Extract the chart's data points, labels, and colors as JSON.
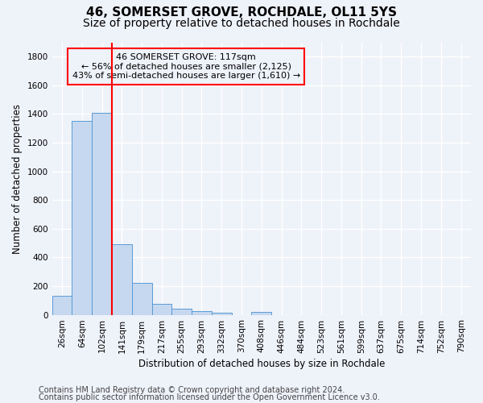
{
  "title1": "46, SOMERSET GROVE, ROCHDALE, OL11 5YS",
  "title2": "Size of property relative to detached houses in Rochdale",
  "xlabel": "Distribution of detached houses by size in Rochdale",
  "ylabel": "Number of detached properties",
  "bar_labels": [
    "26sqm",
    "64sqm",
    "102sqm",
    "141sqm",
    "179sqm",
    "217sqm",
    "255sqm",
    "293sqm",
    "332sqm",
    "370sqm",
    "408sqm",
    "446sqm",
    "484sqm",
    "523sqm",
    "561sqm",
    "599sqm",
    "637sqm",
    "675sqm",
    "714sqm",
    "752sqm",
    "790sqm"
  ],
  "bar_values": [
    135,
    1350,
    1410,
    490,
    225,
    75,
    45,
    28,
    15,
    0,
    20,
    0,
    0,
    0,
    0,
    0,
    0,
    0,
    0,
    0,
    0
  ],
  "bar_color": "#c5d8ef",
  "bar_edge_color": "#5b9bd5",
  "property_line_x": 2.5,
  "property_line_color": "red",
  "annotation_text": "46 SOMERSET GROVE: 117sqm\n← 56% of detached houses are smaller (2,125)\n43% of semi-detached houses are larger (1,610) →",
  "annotation_box_color": "red",
  "ylim": [
    0,
    1900
  ],
  "yticks": [
    0,
    200,
    400,
    600,
    800,
    1000,
    1200,
    1400,
    1600,
    1800
  ],
  "footer1": "Contains HM Land Registry data © Crown copyright and database right 2024.",
  "footer2": "Contains public sector information licensed under the Open Government Licence v3.0.",
  "background_color": "#eef2f9",
  "grid_color": "#ffffff",
  "title_fontsize": 11,
  "subtitle_fontsize": 10,
  "axis_label_fontsize": 8.5,
  "tick_fontsize": 7.5,
  "footer_fontsize": 7,
  "annot_fontsize": 8
}
